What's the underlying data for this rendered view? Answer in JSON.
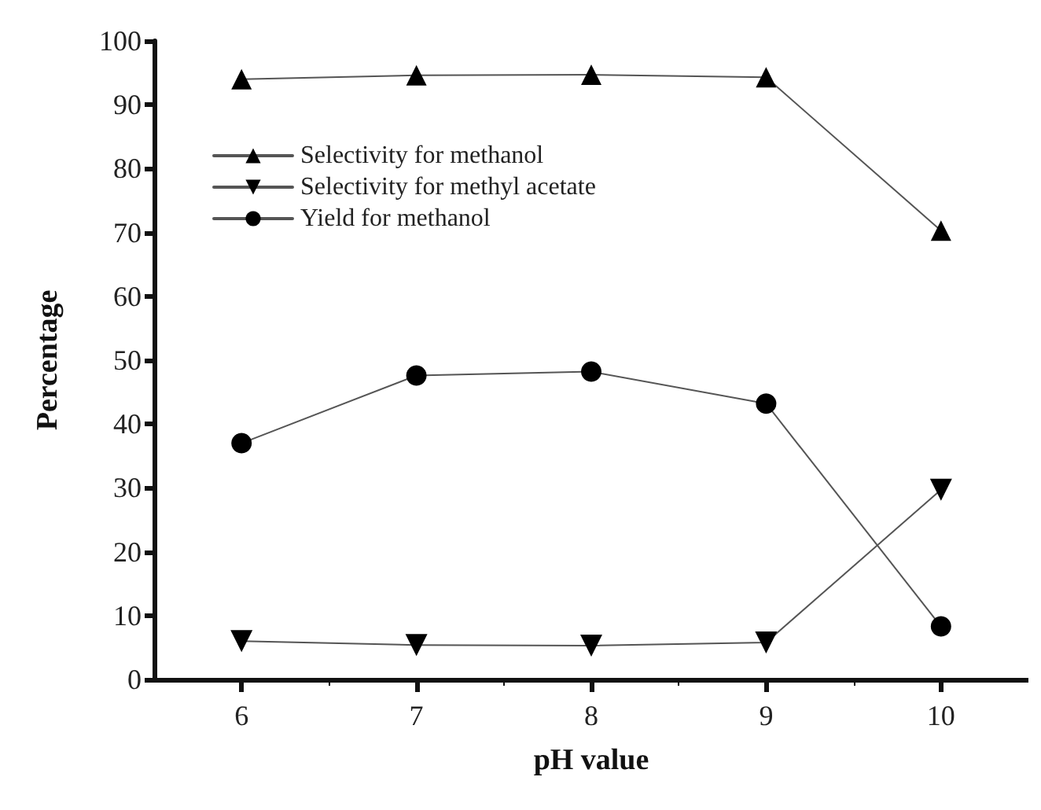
{
  "chart_data": {
    "type": "line",
    "xlabel": "pH value",
    "ylabel": "Percentage",
    "x": [
      6,
      7,
      8,
      9,
      10
    ],
    "xlim": [
      5.5,
      10.5
    ],
    "xticks": [
      6,
      7,
      8,
      9,
      10
    ],
    "ylim": [
      0,
      100
    ],
    "yticks": [
      0,
      10,
      20,
      30,
      40,
      50,
      60,
      70,
      80,
      90,
      100
    ],
    "series": [
      {
        "name": "Selectivity for methanol",
        "color": "#000000",
        "marker": "triangle",
        "values": [
          94,
          94.6,
          94.7,
          94.3,
          70.3
        ]
      },
      {
        "name": "Selectivity for methyl acetate",
        "color": "#000000",
        "marker": "triangle-down",
        "values": [
          6,
          5.4,
          5.3,
          5.8,
          29.7
        ]
      },
      {
        "name": "Yield for methanol",
        "color": "#000000",
        "marker": "circle",
        "values": [
          37,
          47.6,
          48.2,
          43.2,
          8.3
        ]
      }
    ],
    "legend": "top left",
    "grid": false,
    "line_style": "solid"
  }
}
